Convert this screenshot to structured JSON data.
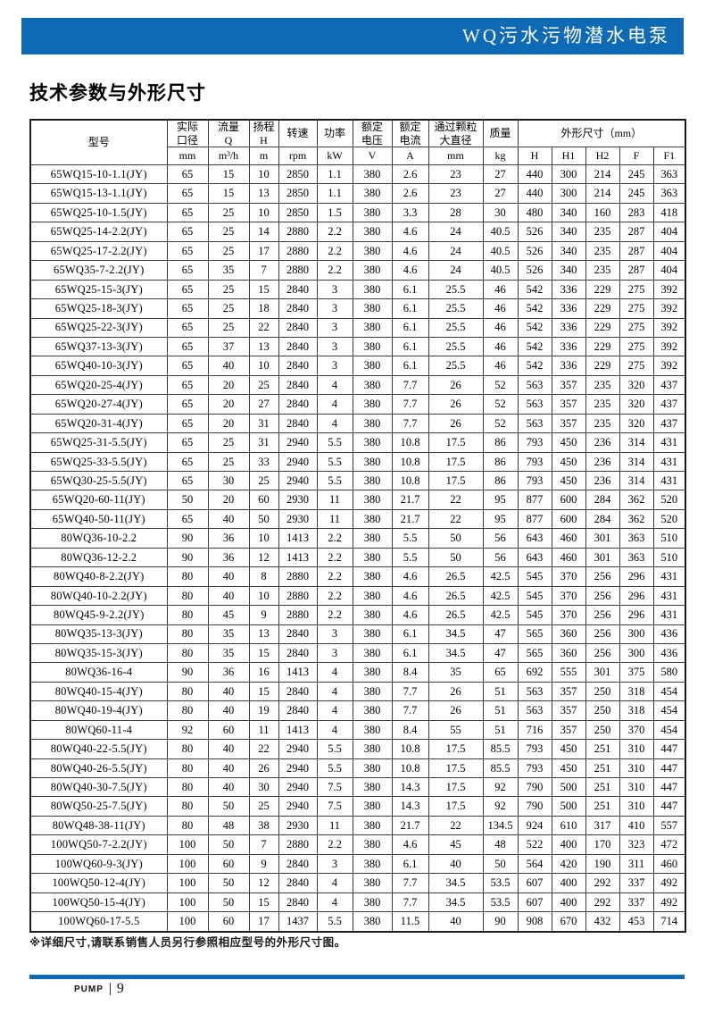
{
  "colors": {
    "accent_blue": "#0f6ab5",
    "border_dark": "#3c3c3c"
  },
  "banner": {
    "title": "WQ污水污物潜水电泵"
  },
  "page": {
    "section_title": "技术参数与外形尺寸"
  },
  "table": {
    "model_header": "型号",
    "columns": [
      {
        "label": "实际\n口径",
        "unit": "mm"
      },
      {
        "label": "流量\nQ",
        "unit": "m³/h"
      },
      {
        "label": "扬程\nH",
        "unit": "m"
      },
      {
        "label": "转速",
        "unit": "rpm"
      },
      {
        "label": "功率",
        "unit": "kW"
      },
      {
        "label": "额定\n电压",
        "unit": "V"
      },
      {
        "label": "额定\n电流",
        "unit": "A"
      },
      {
        "label": "通过颗粒\n大直径",
        "unit": "mm"
      },
      {
        "label": "质量",
        "unit": "kg"
      }
    ],
    "dims_header": "外形尺寸（mm）",
    "dims_subcols": [
      "H",
      "H1",
      "H2",
      "F",
      "F1"
    ],
    "rows": [
      [
        "65WQ15-10-1.1(JY)",
        "65",
        "15",
        "10",
        "2850",
        "1.1",
        "380",
        "2.6",
        "23",
        "27",
        "440",
        "300",
        "214",
        "245",
        "363"
      ],
      [
        "65WQ15-13-1.1(JY)",
        "65",
        "15",
        "13",
        "2850",
        "1.1",
        "380",
        "2.6",
        "23",
        "27",
        "440",
        "300",
        "214",
        "245",
        "363"
      ],
      [
        "65WQ25-10-1.5(JY)",
        "65",
        "25",
        "10",
        "2850",
        "1.5",
        "380",
        "3.3",
        "28",
        "30",
        "480",
        "340",
        "160",
        "283",
        "418"
      ],
      [
        "65WQ25-14-2.2(JY)",
        "65",
        "25",
        "14",
        "2880",
        "2.2",
        "380",
        "4.6",
        "24",
        "40.5",
        "526",
        "340",
        "235",
        "287",
        "404"
      ],
      [
        "65WQ25-17-2.2(JY)",
        "65",
        "25",
        "17",
        "2880",
        "2.2",
        "380",
        "4.6",
        "24",
        "40.5",
        "526",
        "340",
        "235",
        "287",
        "404"
      ],
      [
        "65WQ35-7-2.2(JY)",
        "65",
        "35",
        "7",
        "2880",
        "2.2",
        "380",
        "4.6",
        "24",
        "40.5",
        "526",
        "340",
        "235",
        "287",
        "404"
      ],
      [
        "65WQ25-15-3(JY)",
        "65",
        "25",
        "15",
        "2840",
        "3",
        "380",
        "6.1",
        "25.5",
        "46",
        "542",
        "336",
        "229",
        "275",
        "392"
      ],
      [
        "65WQ25-18-3(JY)",
        "65",
        "25",
        "18",
        "2840",
        "3",
        "380",
        "6.1",
        "25.5",
        "46",
        "542",
        "336",
        "229",
        "275",
        "392"
      ],
      [
        "65WQ25-22-3(JY)",
        "65",
        "25",
        "22",
        "2840",
        "3",
        "380",
        "6.1",
        "25.5",
        "46",
        "542",
        "336",
        "229",
        "275",
        "392"
      ],
      [
        "65WQ37-13-3(JY)",
        "65",
        "37",
        "13",
        "2840",
        "3",
        "380",
        "6.1",
        "25.5",
        "46",
        "542",
        "336",
        "229",
        "275",
        "392"
      ],
      [
        "65WQ40-10-3(JY)",
        "65",
        "40",
        "10",
        "2840",
        "3",
        "380",
        "6.1",
        "25.5",
        "46",
        "542",
        "336",
        "229",
        "275",
        "392"
      ],
      [
        "65WQ20-25-4(JY)",
        "65",
        "20",
        "25",
        "2840",
        "4",
        "380",
        "7.7",
        "26",
        "52",
        "563",
        "357",
        "235",
        "320",
        "437"
      ],
      [
        "65WQ20-27-4(JY)",
        "65",
        "20",
        "27",
        "2840",
        "4",
        "380",
        "7.7",
        "26",
        "52",
        "563",
        "357",
        "235",
        "320",
        "437"
      ],
      [
        "65WQ20-31-4(JY)",
        "65",
        "20",
        "31",
        "2840",
        "4",
        "380",
        "7.7",
        "26",
        "52",
        "563",
        "357",
        "235",
        "320",
        "437"
      ],
      [
        "65WQ25-31-5.5(JY)",
        "65",
        "25",
        "31",
        "2940",
        "5.5",
        "380",
        "10.8",
        "17.5",
        "86",
        "793",
        "450",
        "236",
        "314",
        "431"
      ],
      [
        "65WQ25-33-5.5(JY)",
        "65",
        "25",
        "33",
        "2940",
        "5.5",
        "380",
        "10.8",
        "17.5",
        "86",
        "793",
        "450",
        "236",
        "314",
        "431"
      ],
      [
        "65WQ30-25-5.5(JY)",
        "65",
        "30",
        "25",
        "2940",
        "5.5",
        "380",
        "10.8",
        "17.5",
        "86",
        "793",
        "450",
        "236",
        "314",
        "431"
      ],
      [
        "65WQ20-60-11(JY)",
        "50",
        "20",
        "60",
        "2930",
        "11",
        "380",
        "21.7",
        "22",
        "95",
        "877",
        "600",
        "284",
        "362",
        "520"
      ],
      [
        "65WQ40-50-11(JY)",
        "65",
        "40",
        "50",
        "2930",
        "11",
        "380",
        "21.7",
        "22",
        "95",
        "877",
        "600",
        "284",
        "362",
        "520"
      ],
      [
        "80WQ36-10-2.2",
        "90",
        "36",
        "10",
        "1413",
        "2.2",
        "380",
        "5.5",
        "50",
        "56",
        "643",
        "460",
        "301",
        "363",
        "510"
      ],
      [
        "80WQ36-12-2.2",
        "90",
        "36",
        "12",
        "1413",
        "2.2",
        "380",
        "5.5",
        "50",
        "56",
        "643",
        "460",
        "301",
        "363",
        "510"
      ],
      [
        "80WQ40-8-2.2(JY)",
        "80",
        "40",
        "8",
        "2880",
        "2.2",
        "380",
        "4.6",
        "26.5",
        "42.5",
        "545",
        "370",
        "256",
        "296",
        "431"
      ],
      [
        "80WQ40-10-2.2(JY)",
        "80",
        "40",
        "10",
        "2880",
        "2.2",
        "380",
        "4.6",
        "26.5",
        "42.5",
        "545",
        "370",
        "256",
        "296",
        "431"
      ],
      [
        "80WQ45-9-2.2(JY)",
        "80",
        "45",
        "9",
        "2880",
        "2.2",
        "380",
        "4.6",
        "26.5",
        "42.5",
        "545",
        "370",
        "256",
        "296",
        "431"
      ],
      [
        "80WQ35-13-3(JY)",
        "80",
        "35",
        "13",
        "2840",
        "3",
        "380",
        "6.1",
        "34.5",
        "47",
        "565",
        "360",
        "256",
        "300",
        "436"
      ],
      [
        "80WQ35-15-3(JY)",
        "80",
        "35",
        "15",
        "2840",
        "3",
        "380",
        "6.1",
        "34.5",
        "47",
        "565",
        "360",
        "256",
        "300",
        "436"
      ],
      [
        "80WQ36-16-4",
        "90",
        "36",
        "16",
        "1413",
        "4",
        "380",
        "8.4",
        "35",
        "65",
        "692",
        "555",
        "301",
        "375",
        "580"
      ],
      [
        "80WQ40-15-4(JY)",
        "80",
        "40",
        "15",
        "2840",
        "4",
        "380",
        "7.7",
        "26",
        "51",
        "563",
        "357",
        "250",
        "318",
        "454"
      ],
      [
        "80WQ40-19-4(JY)",
        "80",
        "40",
        "19",
        "2840",
        "4",
        "380",
        "7.7",
        "26",
        "51",
        "563",
        "357",
        "250",
        "318",
        "454"
      ],
      [
        "80WQ60-11-4",
        "92",
        "60",
        "11",
        "1413",
        "4",
        "380",
        "8.4",
        "55",
        "51",
        "716",
        "357",
        "250",
        "370",
        "454"
      ],
      [
        "80WQ40-22-5.5(JY)",
        "80",
        "40",
        "22",
        "2940",
        "5.5",
        "380",
        "10.8",
        "17.5",
        "85.5",
        "793",
        "450",
        "251",
        "310",
        "447"
      ],
      [
        "80WQ40-26-5.5(JY)",
        "80",
        "40",
        "26",
        "2940",
        "5.5",
        "380",
        "10.8",
        "17.5",
        "85.5",
        "793",
        "450",
        "251",
        "310",
        "447"
      ],
      [
        "80WQ40-30-7.5(JY)",
        "80",
        "40",
        "30",
        "2940",
        "7.5",
        "380",
        "14.3",
        "17.5",
        "92",
        "790",
        "500",
        "251",
        "310",
        "447"
      ],
      [
        "80WQ50-25-7.5(JY)",
        "80",
        "50",
        "25",
        "2940",
        "7.5",
        "380",
        "14.3",
        "17.5",
        "92",
        "790",
        "500",
        "251",
        "310",
        "447"
      ],
      [
        "80WQ48-38-11(JY)",
        "80",
        "48",
        "38",
        "2930",
        "11",
        "380",
        "21.7",
        "22",
        "134.5",
        "924",
        "610",
        "317",
        "410",
        "557"
      ],
      [
        "100WQ50-7-2.2(JY)",
        "100",
        "50",
        "7",
        "2880",
        "2.2",
        "380",
        "4.6",
        "45",
        "48",
        "522",
        "400",
        "170",
        "323",
        "472"
      ],
      [
        "100WQ60-9-3(JY)",
        "100",
        "60",
        "9",
        "2840",
        "3",
        "380",
        "6.1",
        "40",
        "50",
        "564",
        "420",
        "190",
        "311",
        "460"
      ],
      [
        "100WQ50-12-4(JY)",
        "100",
        "50",
        "12",
        "2840",
        "4",
        "380",
        "7.7",
        "34.5",
        "53.5",
        "607",
        "400",
        "292",
        "337",
        "492"
      ],
      [
        "100WQ50-15-4(JY)",
        "100",
        "50",
        "15",
        "2840",
        "4",
        "380",
        "7.7",
        "34.5",
        "53.5",
        "607",
        "400",
        "292",
        "337",
        "492"
      ],
      [
        "100WQ60-17-5.5",
        "100",
        "60",
        "17",
        "1437",
        "5.5",
        "380",
        "11.5",
        "40",
        "90",
        "908",
        "670",
        "432",
        "453",
        "714"
      ]
    ]
  },
  "footnote": {
    "text": "※详细尺寸,请联系销售人员另行参照相应型号的外形尺寸图。"
  },
  "footer": {
    "brand": "PUMP",
    "page_number": "9"
  }
}
